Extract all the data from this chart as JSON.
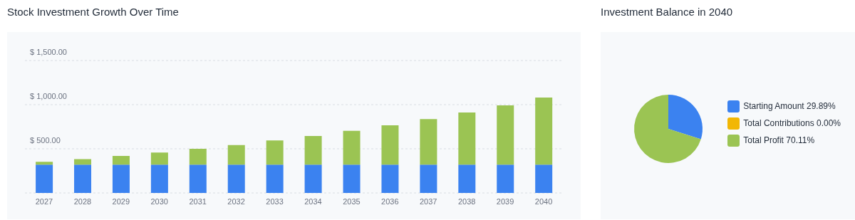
{
  "chart_data": [
    {
      "type": "bar",
      "title": "Stock Investment Growth Over Time",
      "stacked": true,
      "grid": "y",
      "categories": [
        "2027",
        "2028",
        "2029",
        "2030",
        "2031",
        "2032",
        "2033",
        "2034",
        "2035",
        "2036",
        "2037",
        "2038",
        "2039",
        "2040"
      ],
      "series": [
        {
          "color": "#3b82f0",
          "values": [
            320,
            320,
            320,
            320,
            320,
            320,
            320,
            320,
            320,
            320,
            320,
            320,
            320,
            320
          ]
        },
        {
          "color": "#9bc453",
          "values": [
            32,
            64,
            99,
            137,
            180,
            222,
            274,
            325,
            384,
            446,
            516,
            591,
            671,
            760
          ]
        }
      ],
      "ylim": [
        0,
        1500
      ],
      "yticks": [
        {
          "value": 0,
          "label": null
        },
        {
          "value": 500,
          "label": "$ 500.00"
        },
        {
          "value": 1000,
          "label": "$ 1,000.00"
        },
        {
          "value": 1500,
          "label": "$ 1,500.00"
        }
      ]
    },
    {
      "type": "pie",
      "title": "Investment Balance in 2040",
      "legend": "right",
      "categories": [
        "Starting Amount",
        "Total Contributions",
        "Total Profit"
      ],
      "values": [
        29.89,
        0,
        70.11
      ],
      "value_labels": [
        "29.89%",
        "0.00%",
        "70.11%"
      ],
      "colors": [
        "#3b82f0",
        "#f2b705",
        "#9bc453"
      ]
    }
  ]
}
